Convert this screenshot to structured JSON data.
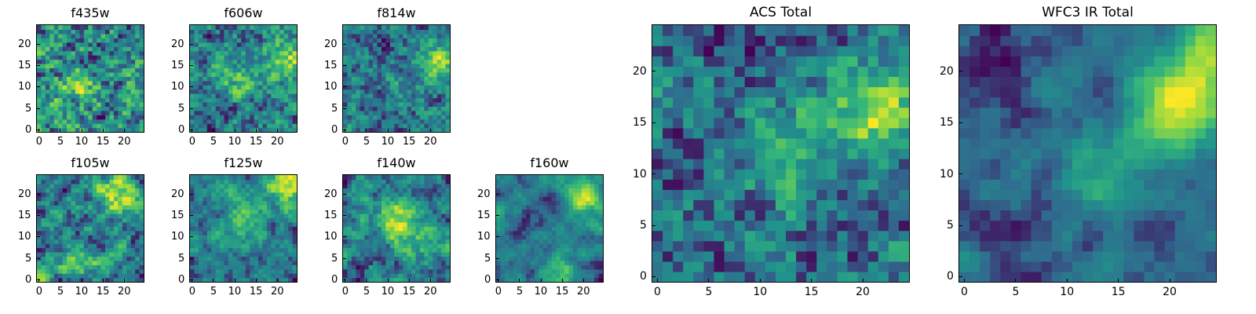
{
  "colormap": [
    "#440154",
    "#31688e",
    "#21918c",
    "#35b779",
    "#90d743",
    "#fde725"
  ],
  "panels": [
    {
      "title": "f435w",
      "seed": 11,
      "hot": [
        [
          10,
          10,
          0.25
        ]
      ],
      "smooth": 0.15
    },
    {
      "title": "f606w",
      "seed": 23,
      "hot": [
        [
          22,
          17,
          0.5
        ],
        [
          10,
          12,
          0.3
        ]
      ],
      "smooth": 0.2
    },
    {
      "title": "f814w",
      "seed": 37,
      "hot": [
        [
          22,
          16,
          0.55
        ],
        [
          14,
          10,
          0.2
        ]
      ],
      "smooth": 0.2
    },
    {
      "title": "f105w",
      "seed": 41,
      "hot": [
        [
          18,
          20,
          0.45
        ],
        [
          10,
          4,
          0.3
        ]
      ],
      "smooth": 0.55
    },
    {
      "title": "f125w",
      "seed": 53,
      "hot": [
        [
          22,
          22,
          0.5
        ],
        [
          12,
          14,
          0.3
        ]
      ],
      "smooth": 0.55
    },
    {
      "title": "f140w",
      "seed": 67,
      "hot": [
        [
          12,
          14,
          0.5
        ],
        [
          18,
          8,
          0.3
        ]
      ],
      "smooth": 0.6
    },
    {
      "title": "f160w",
      "seed": 79,
      "hot": [
        [
          21,
          19,
          0.6
        ],
        [
          16,
          2,
          0.35
        ]
      ],
      "smooth": 0.65
    },
    {
      "title": "ACS Total",
      "seed": 91,
      "hot": [
        [
          21,
          16,
          0.7
        ],
        [
          12,
          12,
          0.4
        ]
      ],
      "smooth": 0.35
    },
    {
      "title": "WFC3 IR Total",
      "seed": 103,
      "hot": [
        [
          21,
          17,
          0.75
        ],
        [
          24,
          22,
          0.5
        ],
        [
          13,
          10,
          0.3
        ]
      ],
      "smooth": 0.7
    }
  ],
  "chart_data": [
    {
      "type": "heatmap",
      "title": "f435w",
      "xlim": [
        0,
        24
      ],
      "ylim": [
        0,
        24
      ],
      "x_ticks": [
        "0",
        "5",
        "10",
        "15",
        "20"
      ],
      "y_ticks": [
        "0",
        "5",
        "10",
        "15",
        "20"
      ],
      "grid": "25x25 pixels, noisy, fairly uniform"
    },
    {
      "type": "heatmap",
      "title": "f606w",
      "xlim": [
        0,
        24
      ],
      "ylim": [
        0,
        24
      ],
      "x_ticks": [
        "0",
        "5",
        "10",
        "15",
        "20"
      ],
      "y_ticks": [
        "0",
        "5",
        "10",
        "15",
        "20"
      ],
      "grid": "25x25 pixels, brighter at upper right"
    },
    {
      "type": "heatmap",
      "title": "f814w",
      "xlim": [
        0,
        24
      ],
      "ylim": [
        0,
        24
      ],
      "x_ticks": [
        "0",
        "5",
        "10",
        "15",
        "20"
      ],
      "y_ticks": [
        "0",
        "5",
        "10",
        "15",
        "20"
      ],
      "grid": "25x25 pixels, bright region near x~22, y~16"
    },
    {
      "type": "heatmap",
      "title": "f105w",
      "xlim": [
        0,
        24
      ],
      "ylim": [
        0,
        24
      ],
      "x_ticks": [
        "0",
        "5",
        "10",
        "15",
        "20"
      ],
      "y_ticks": [
        "0",
        "5",
        "10",
        "15",
        "20"
      ],
      "grid": "25x25 pixels, smoother"
    },
    {
      "type": "heatmap",
      "title": "f125w",
      "xlim": [
        0,
        24
      ],
      "ylim": [
        0,
        24
      ],
      "x_ticks": [
        "0",
        "5",
        "10",
        "15",
        "20"
      ],
      "y_ticks": [
        "0",
        "5",
        "10",
        "15",
        "20"
      ],
      "grid": "25x25 pixels, bright upper right"
    },
    {
      "type": "heatmap",
      "title": "f140w",
      "xlim": [
        0,
        24
      ],
      "ylim": [
        0,
        24
      ],
      "x_ticks": [
        "0",
        "5",
        "10",
        "15",
        "20"
      ],
      "y_ticks": [
        "0",
        "5",
        "10",
        "15",
        "20"
      ],
      "grid": "25x25 pixels"
    },
    {
      "type": "heatmap",
      "title": "f160w",
      "xlim": [
        0,
        24
      ],
      "ylim": [
        0,
        24
      ],
      "x_ticks": [
        "0",
        "5",
        "10",
        "15",
        "20"
      ],
      "y_ticks": [
        "0",
        "5",
        "10",
        "15",
        "20"
      ],
      "grid": "25x25 pixels, bright upper right"
    },
    {
      "type": "heatmap",
      "title": "ACS Total",
      "xlim": [
        0,
        24
      ],
      "ylim": [
        0,
        24
      ],
      "x_ticks": [
        "0",
        "5",
        "10",
        "15",
        "20"
      ],
      "y_ticks": [
        "0",
        "5",
        "10",
        "15",
        "20"
      ],
      "grid": "25x25 pixels, bright region x~19-24, y~15-18"
    },
    {
      "type": "heatmap",
      "title": "WFC3 IR Total",
      "xlim": [
        0,
        24
      ],
      "ylim": [
        0,
        24
      ],
      "x_ticks": [
        "0",
        "5",
        "10",
        "15",
        "20"
      ],
      "y_ticks": [
        "0",
        "5",
        "10",
        "15",
        "20"
      ],
      "grid": "25x25 pixels, bright upper right, dark left edge"
    }
  ]
}
